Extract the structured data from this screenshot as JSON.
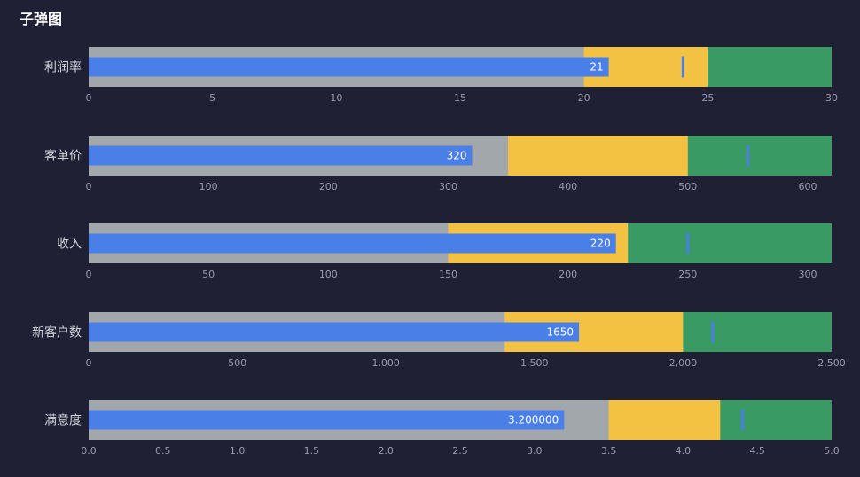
{
  "title": "子弹图",
  "chart_data": {
    "type": "bullet",
    "title": "子弹图",
    "colors": {
      "background": "#1f2033",
      "range_low": "#a1a7ab",
      "range_mid": "#f4c242",
      "range_high": "#3a9a64",
      "measure": "#4a7fe8",
      "target": "#4a7fe8",
      "tick_label": "#9a9cae",
      "category_label": "#d0d2dc",
      "value_label": "#ffffff"
    },
    "bullets": [
      {
        "label": "利润率",
        "value": 21,
        "value_text": "21",
        "target": 24,
        "ranges": [
          20,
          25,
          30
        ],
        "min": 0,
        "max": 30,
        "ticks": [
          0,
          5,
          10,
          15,
          20,
          25,
          30
        ],
        "tick_labels": [
          "0",
          "5",
          "10",
          "15",
          "20",
          "25",
          "30"
        ]
      },
      {
        "label": "客单价",
        "value": 320,
        "value_text": "320",
        "target": 550,
        "ranges": [
          350,
          500,
          620
        ],
        "min": 0,
        "max": 620,
        "ticks": [
          0,
          100,
          200,
          300,
          400,
          500,
          600
        ],
        "tick_labels": [
          "0",
          "100",
          "200",
          "300",
          "400",
          "500",
          "600"
        ]
      },
      {
        "label": "收入",
        "value": 220,
        "value_text": "220",
        "target": 250,
        "ranges": [
          150,
          225,
          310
        ],
        "min": 0,
        "max": 310,
        "ticks": [
          0,
          50,
          100,
          150,
          200,
          250,
          300
        ],
        "tick_labels": [
          "0",
          "50",
          "100",
          "150",
          "200",
          "250",
          "300"
        ]
      },
      {
        "label": "新客户数",
        "value": 1650,
        "value_text": "1650",
        "target": 2100,
        "ranges": [
          1400,
          2000,
          2500
        ],
        "min": 0,
        "max": 2500,
        "ticks": [
          0,
          500,
          1000,
          1500,
          2000,
          2500
        ],
        "tick_labels": [
          "0",
          "500",
          "1,000",
          "1,500",
          "2,000",
          "2,500"
        ]
      },
      {
        "label": "满意度",
        "value": 3.2,
        "value_text": "3.200000",
        "target": 4.4,
        "ranges": [
          3.5,
          4.25,
          5.0
        ],
        "min": 0,
        "max": 5.0,
        "ticks": [
          0,
          0.5,
          1.0,
          1.5,
          2.0,
          2.5,
          3.0,
          3.5,
          4.0,
          4.5,
          5.0
        ],
        "tick_labels": [
          "0.0",
          "0.5",
          "1.0",
          "1.5",
          "2.0",
          "2.5",
          "3.0",
          "3.5",
          "4.0",
          "4.5",
          "5.0"
        ]
      }
    ]
  }
}
